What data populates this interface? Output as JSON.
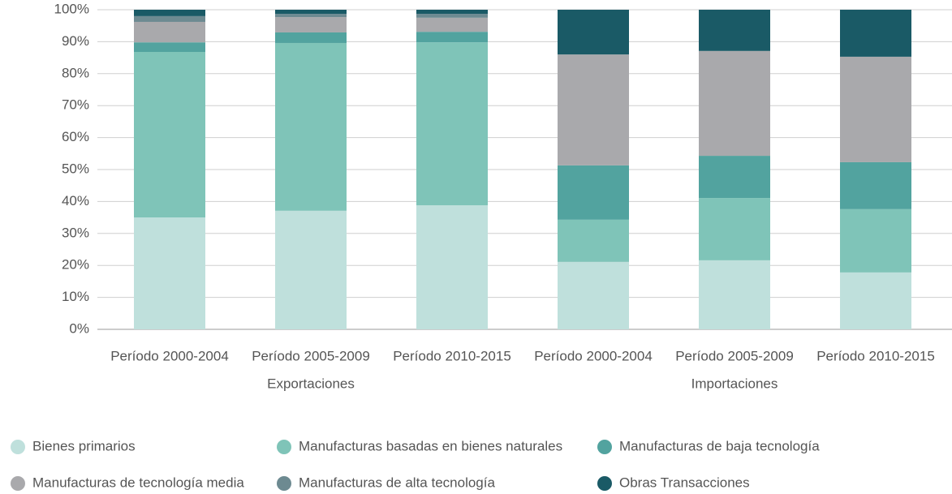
{
  "chart_data": {
    "type": "stacked_bar",
    "categories": [
      "Período 2000-2004",
      "Período 2005-2009",
      "Período 2010-2015",
      "Período 2000-2004",
      "Período 2005-2009",
      "Período 2010-2015"
    ],
    "group_labels": [
      "Exportaciones",
      "Importaciones"
    ],
    "series": [
      {
        "name": "Bienes primarios",
        "color": "#bfe0dc",
        "values": [
          35.0,
          37.1,
          38.8,
          21.1,
          21.6,
          17.8
        ]
      },
      {
        "name": "Manufacturas basadas en bienes naturales",
        "color": "#7fc4b8",
        "values": [
          51.8,
          52.5,
          51.0,
          13.2,
          19.5,
          19.8
        ]
      },
      {
        "name": "Manufacturas de baja tecnología",
        "color": "#52a39f",
        "values": [
          3.0,
          3.3,
          3.3,
          17.0,
          13.2,
          14.7
        ]
      },
      {
        "name": "Manufacturas de tecnología media",
        "color": "#a9a9ac",
        "values": [
          6.4,
          4.8,
          4.4,
          34.7,
          32.8,
          33.0
        ]
      },
      {
        "name": "Manufacturas de alta tecnología",
        "color": "#6d8a91",
        "values": [
          1.8,
          1.0,
          1.2,
          0,
          0,
          0
        ]
      },
      {
        "name": "Obras Transacciones",
        "color": "#1a5a66",
        "values": [
          2.0,
          1.3,
          1.3,
          14.0,
          12.9,
          14.7
        ]
      }
    ],
    "ylim": [
      0,
      100
    ],
    "yticks": [
      {
        "value": 0,
        "label": "0%"
      },
      {
        "value": 10,
        "label": "10%"
      },
      {
        "value": 20,
        "label": "20%"
      },
      {
        "value": 30,
        "label": "30%"
      },
      {
        "value": 40,
        "label": "40%"
      },
      {
        "value": 50,
        "label": "50%"
      },
      {
        "value": 60,
        "label": "60%"
      },
      {
        "value": 70,
        "label": "70%"
      },
      {
        "value": 80,
        "label": "80%"
      },
      {
        "value": 90,
        "label": "90%"
      },
      {
        "value": 100,
        "label": "100%"
      }
    ],
    "grid": true,
    "legend": "bottom"
  }
}
